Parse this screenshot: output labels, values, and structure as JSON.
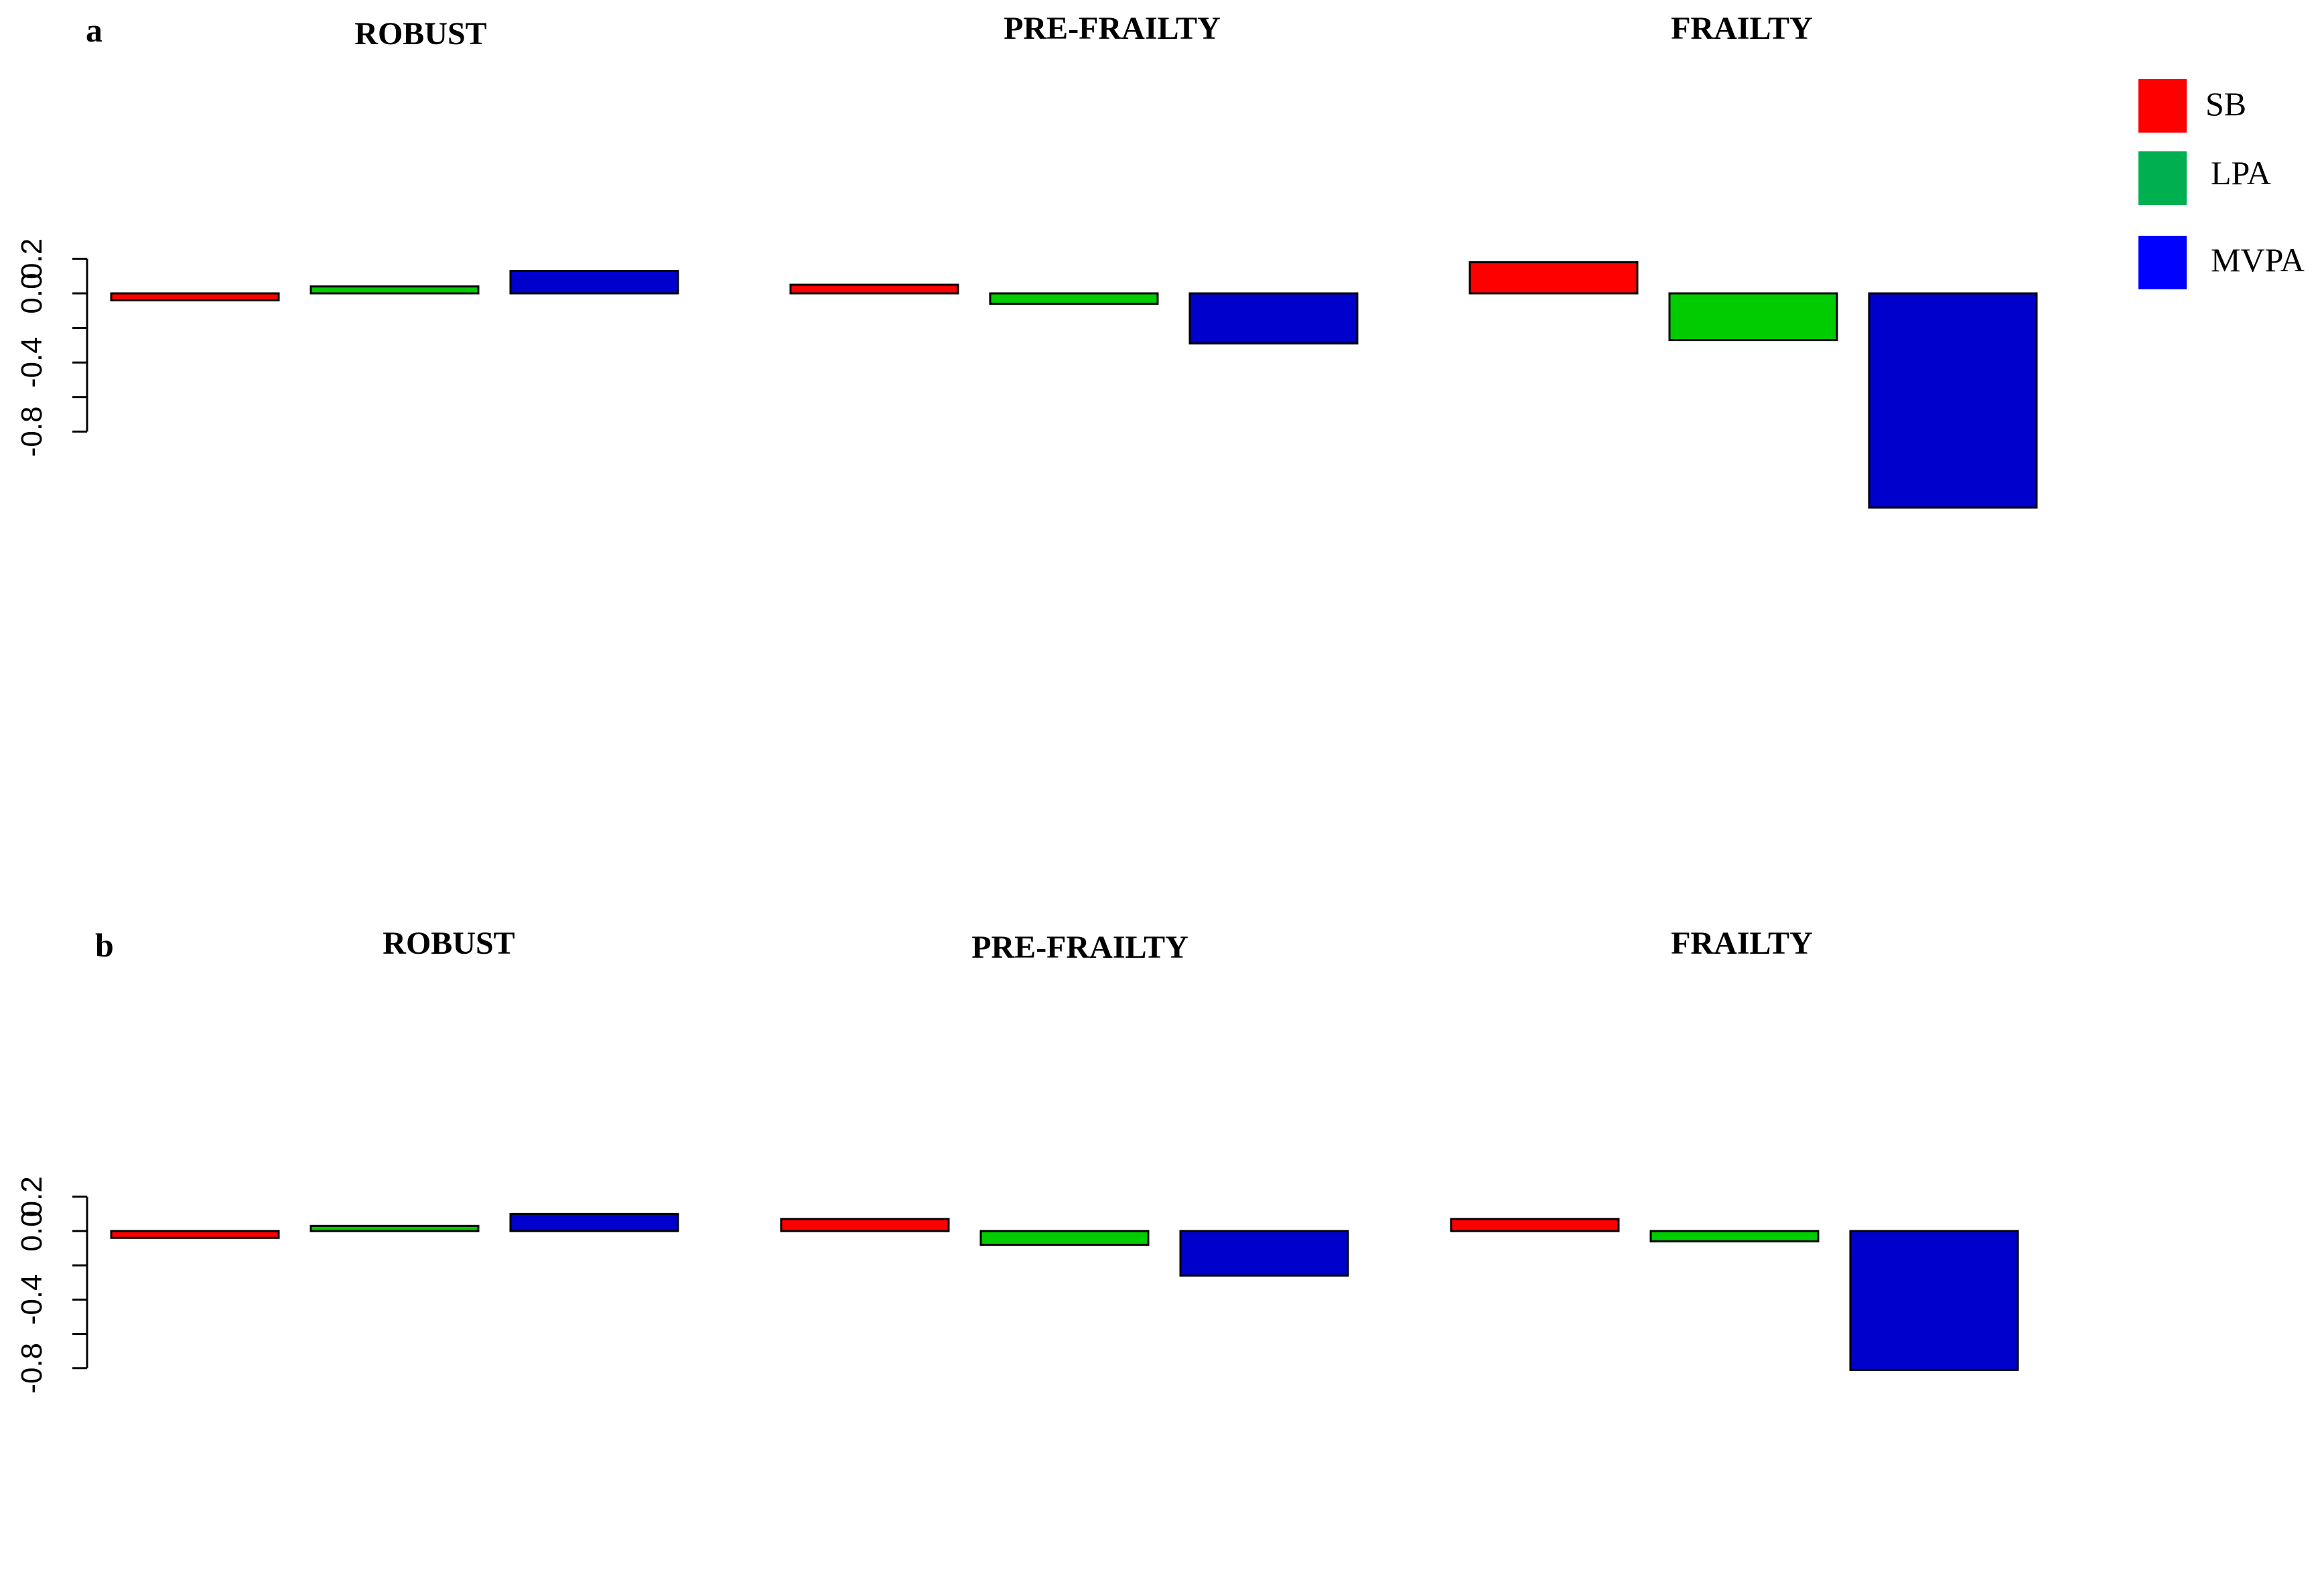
{
  "chart_data": [
    {
      "type": "bar",
      "panel": "a",
      "groups": [
        "ROBUST",
        "PRE-FRAILTY",
        "FRAILTY"
      ],
      "series": [
        {
          "name": "SB",
          "values": [
            -0.04,
            0.05,
            0.18
          ]
        },
        {
          "name": "LPA",
          "values": [
            0.04,
            -0.06,
            -0.27
          ]
        },
        {
          "name": "MVPA",
          "values": [
            0.13,
            -0.29,
            -1.24
          ]
        }
      ],
      "yticks": [
        "0.2",
        "0.0",
        "-0.4",
        "-0.8"
      ],
      "ytick_values": [
        0.2,
        0.0,
        -0.2,
        -0.4,
        -0.6,
        -0.8
      ],
      "ylim": [
        -1.24,
        0.2
      ],
      "legend_position": "top-right"
    },
    {
      "type": "bar",
      "panel": "b",
      "groups": [
        "ROBUST",
        "PRE-FRAILTY",
        "FRAILTY"
      ],
      "series": [
        {
          "name": "SB",
          "values": [
            -0.04,
            0.07,
            0.07
          ]
        },
        {
          "name": "LPA",
          "values": [
            0.03,
            -0.08,
            -0.06
          ]
        },
        {
          "name": "MVPA",
          "values": [
            0.1,
            -0.26,
            -0.81
          ]
        }
      ],
      "yticks": [
        "0.2",
        "0.0",
        "-0.4",
        "-0.8"
      ],
      "ytick_values": [
        0.2,
        0.0,
        -0.2,
        -0.4,
        -0.6,
        -0.8
      ],
      "ylim": [
        -0.81,
        0.2
      ]
    }
  ],
  "legend": [
    {
      "label": "SB",
      "color": "#ff0000"
    },
    {
      "label": "LPA",
      "color": "#00b050"
    },
    {
      "label": "MVPA",
      "color": "#0000ff"
    }
  ],
  "colors": {
    "SB": "#ff0000",
    "LPA": "#00cc00",
    "MVPA": "#0000cc"
  }
}
